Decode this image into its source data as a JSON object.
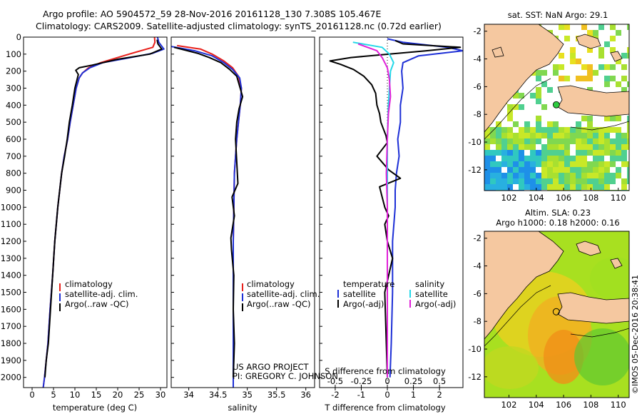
{
  "header": {
    "line1": "Argo profile: AO 5904572_59 28-Nov-2016 20161128_130 7.308S 105.467E",
    "line2": "Climatology: CARS2009. Satellite-adjusted climatology: synTS_20161128.nc (0.72d earlier)"
  },
  "colors": {
    "climatology": "#e8201b",
    "satellite": "#1d2fd6",
    "argo": "#000000",
    "salinity_sat": "#22d8e8",
    "salinity_argo": "#e020d8",
    "land": "#f5c8a0"
  },
  "chart_data": [
    {
      "type": "line",
      "name": "temperature-profile",
      "xlabel": "temperature (deg C)",
      "ylabel": "",
      "xlim": [
        -2,
        31.5
      ],
      "ylim": [
        2060,
        0
      ],
      "xticks": [
        "0",
        "5",
        "10",
        "15",
        "20",
        "25",
        "30"
      ],
      "xtick_values": [
        0,
        5,
        10,
        15,
        20,
        25,
        30
      ],
      "yticks": [
        "0",
        "100",
        "200",
        "300",
        "400",
        "500",
        "600",
        "700",
        "800",
        "900",
        "1000",
        "1100",
        "1200",
        "1300",
        "1400",
        "1500",
        "1600",
        "1700",
        "1800",
        "1900",
        "2000"
      ],
      "ytick_values": [
        0,
        100,
        200,
        300,
        400,
        500,
        600,
        700,
        800,
        900,
        1000,
        1100,
        1200,
        1300,
        1400,
        1500,
        1600,
        1700,
        1800,
        1900,
        2000
      ],
      "legend": [
        "climatology",
        "satellite-adj. clim.",
        "Argo(..raw -QC)"
      ],
      "series": [
        {
          "name": "climatology",
          "x": [
            28.6,
            28.7,
            28.2,
            24.0,
            20.0,
            16.0,
            13.2,
            11.8,
            11.0,
            10.3,
            9.6,
            8.9,
            8.3,
            7.5,
            6.9,
            6.0,
            5.3,
            4.8,
            4.2,
            3.7,
            3.3,
            2.9,
            2.6
          ],
          "y": [
            0,
            30,
            60,
            90,
            120,
            150,
            180,
            210,
            240,
            300,
            400,
            500,
            600,
            700,
            800,
            1000,
            1200,
            1400,
            1600,
            1800,
            1900,
            2000,
            2060
          ]
        },
        {
          "name": "satellite-adj. clim.",
          "x": [
            29.3,
            29.6,
            30.8,
            28.2,
            22.0,
            16.5,
            13.5,
            11.8,
            11.0,
            10.3,
            9.6,
            8.9,
            8.3,
            7.5,
            6.9,
            6.0,
            5.3,
            4.8,
            4.2,
            3.7,
            3.3,
            2.9,
            2.6
          ],
          "y": [
            0,
            30,
            70,
            95,
            125,
            150,
            180,
            210,
            240,
            300,
            400,
            500,
            600,
            700,
            800,
            1000,
            1200,
            1400,
            1600,
            1800,
            1900,
            2000,
            2060
          ]
        },
        {
          "name": "Argo",
          "x": [
            29.2,
            29.4,
            30.3,
            27.5,
            20.0,
            14.0,
            11.0,
            10.2,
            10.8,
            10.0,
            9.4,
            8.7,
            8.2,
            7.6,
            6.9,
            6.0,
            5.3,
            4.8,
            4.3,
            3.8,
            3.3,
            3.0
          ],
          "y": [
            15,
            40,
            70,
            100,
            130,
            165,
            180,
            195,
            220,
            300,
            400,
            500,
            600,
            700,
            800,
            1000,
            1200,
            1400,
            1600,
            1800,
            1900,
            2000
          ]
        }
      ]
    },
    {
      "type": "line",
      "name": "salinity-profile",
      "xlabel": "salinity",
      "xlim": [
        33.7,
        36.15
      ],
      "ylim": [
        2060,
        0
      ],
      "xticks": [
        "34",
        "34.5",
        "35",
        "35.5",
        "36"
      ],
      "xtick_values": [
        34,
        34.5,
        35,
        35.5,
        36
      ],
      "legend": [
        "climatology",
        "satellite-adj. clim.",
        "Argo(..raw -QC)"
      ],
      "annotations": [
        "US ARGO PROJECT",
        "PI: GREGORY C. JOHNSON"
      ],
      "series": [
        {
          "name": "climatology",
          "x": [
            33.8,
            34.2,
            34.4,
            34.6,
            34.75,
            34.85,
            34.9,
            34.88,
            34.85,
            34.82,
            34.8,
            34.78,
            34.77,
            34.76,
            34.76,
            34.76,
            34.76
          ],
          "y": [
            50,
            70,
            100,
            140,
            180,
            230,
            300,
            400,
            500,
            600,
            700,
            800,
            1000,
            1200,
            1500,
            1800,
            2060
          ]
        },
        {
          "name": "satellite-adj. clim.",
          "x": [
            33.7,
            34.1,
            34.4,
            34.6,
            34.75,
            34.87,
            34.9,
            34.88,
            34.85,
            34.82,
            34.8,
            34.78,
            34.77,
            34.76,
            34.76,
            34.76,
            34.76
          ],
          "y": [
            55,
            80,
            110,
            150,
            190,
            240,
            300,
            400,
            500,
            600,
            700,
            800,
            1000,
            1200,
            1500,
            1800,
            2060
          ]
        },
        {
          "name": "Argo",
          "x": [
            33.75,
            34.15,
            34.35,
            34.55,
            34.7,
            34.82,
            34.92,
            34.86,
            34.82,
            34.8,
            34.84,
            34.74,
            34.78,
            34.72,
            34.73,
            34.77,
            34.76,
            34.78,
            34.76
          ],
          "y": [
            60,
            95,
            120,
            150,
            190,
            230,
            350,
            420,
            500,
            600,
            860,
            940,
            1050,
            1180,
            1250,
            1400,
            1600,
            1800,
            2000
          ]
        }
      ]
    },
    {
      "type": "line",
      "name": "difference-profile",
      "xlabel": "T difference from climatology",
      "xlabel_top": "S difference from climatology",
      "xlim": [
        -2.6,
        2.9
      ],
      "ylim": [
        2060,
        0
      ],
      "xticks": [
        "-2",
        "-1",
        "0",
        "1",
        "2"
      ],
      "xtick_values": [
        -2,
        -1,
        0,
        1,
        2
      ],
      "sticks": [
        "-0.5",
        "-0.25",
        "0",
        "0.25",
        "0.5"
      ],
      "stick_values": [
        -0.5,
        -0.25,
        0,
        0.25,
        0.5
      ],
      "slim": [
        -0.65,
        0.725
      ],
      "legend_temperature_title": "temperature",
      "legend_salinity_title": "salinity",
      "legend": [
        "satellite",
        "Argo(-adj)",
        "satellite",
        "Argo(-adj)"
      ],
      "series": [
        {
          "name": "T satellite",
          "x": [
            0.0,
            0.6,
            2.3,
            2.9,
            1.2,
            0.6,
            0.55,
            0.6,
            0.5,
            0.5,
            0.4,
            0.45,
            0.35,
            0.3,
            0.3,
            0.2,
            0.2,
            0.15,
            0.1
          ],
          "y": [
            10,
            30,
            60,
            80,
            110,
            150,
            200,
            300,
            400,
            500,
            600,
            700,
            800,
            900,
            1000,
            1200,
            1500,
            1800,
            2000
          ]
        },
        {
          "name": "T Argo",
          "x": [
            0.3,
            0.6,
            2.8,
            1.5,
            -1.4,
            -2.2,
            -1.8,
            -1.3,
            -0.9,
            -0.6,
            -0.45,
            -0.4,
            -0.3,
            -0.25,
            -0.15,
            -0.05,
            0.0,
            -0.4,
            0.05,
            0.5,
            -0.3,
            -0.2,
            -0.1,
            0.05,
            -0.1,
            0.0,
            0.2,
            -0.1,
            0.0
          ],
          "y": [
            20,
            40,
            60,
            80,
            120,
            140,
            160,
            190,
            230,
            280,
            330,
            400,
            450,
            500,
            540,
            580,
            620,
            700,
            780,
            830,
            880,
            940,
            1000,
            1050,
            1100,
            1200,
            1300,
            1500,
            2000
          ]
        },
        {
          "name": "S satellite",
          "x": [
            -0.33,
            -0.05,
            0.02,
            0.06,
            0.03,
            0.02,
            0.01,
            0.0,
            0.0,
            0.0,
            0.0,
            0.0,
            0.0,
            0.0
          ],
          "y": [
            30,
            60,
            100,
            150,
            200,
            300,
            400,
            600,
            800,
            1000,
            1200,
            1500,
            1800,
            2000
          ]
        },
        {
          "name": "S Argo",
          "x": [
            -0.28,
            -0.1,
            -0.05,
            0.0,
            0.02,
            0.03,
            0.01,
            0.0,
            -0.01,
            0.0,
            0.0,
            0.0,
            0.0,
            0.0
          ],
          "y": [
            40,
            80,
            120,
            180,
            250,
            350,
            450,
            600,
            800,
            1000,
            1200,
            1500,
            1800,
            2000
          ]
        }
      ]
    },
    {
      "type": "heatmap",
      "name": "sst-map",
      "title": "sat. SST: NaN Argo: 29.1",
      "xlim": [
        100.2,
        110.8
      ],
      "ylim": [
        -13.5,
        -1.5
      ],
      "xticks": [
        "102",
        "104",
        "106",
        "108",
        "110"
      ],
      "xtick_values": [
        102,
        104,
        106,
        108,
        110
      ],
      "yticks": [
        "-2",
        "-4",
        "-6",
        "-8",
        "-10",
        "-12"
      ],
      "ytick_values": [
        -2,
        -4,
        -6,
        -8,
        -10,
        -12
      ],
      "float_position": [
        105.467,
        -7.308
      ]
    },
    {
      "type": "heatmap",
      "name": "sla-map",
      "title_line1": "Altim. SLA: 0.23",
      "title_line2": "Argo h1000: 0.18 h2000: 0.16",
      "xlim": [
        100.2,
        110.8
      ],
      "ylim": [
        -13.5,
        -1.5
      ],
      "xticks": [
        "102",
        "104",
        "106",
        "108",
        "110"
      ],
      "xtick_values": [
        102,
        104,
        106,
        108,
        110
      ],
      "yticks": [
        "-2",
        "-4",
        "-6",
        "-8",
        "-10",
        "-12"
      ],
      "ytick_values": [
        -2,
        -4,
        -6,
        -8,
        -10,
        -12
      ],
      "float_position": [
        105.467,
        -7.308
      ]
    }
  ],
  "footer": {
    "credit": "©IMOS 05-Dec-2016 20:38:41"
  }
}
